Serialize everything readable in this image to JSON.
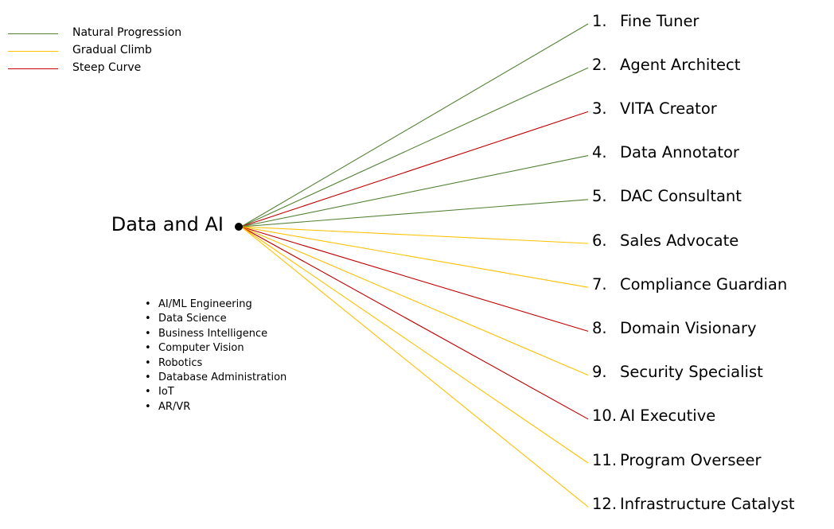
{
  "legend": [
    {
      "label": "Natural Progression",
      "color": "#548235"
    },
    {
      "label": "Gradual Climb",
      "color": "#FFC000"
    },
    {
      "label": "Steep Curve",
      "color": "#C00000"
    }
  ],
  "hub": {
    "label": "Data and AI"
  },
  "fields": [
    "AI/ML Engineering",
    "Data Science",
    "Business Intelligence",
    "Computer Vision",
    "Robotics",
    "Database Administration",
    "IoT",
    "AR/VR"
  ],
  "roles": [
    {
      "number": "1.",
      "label": "Fine Tuner",
      "curve": "Natural Progression"
    },
    {
      "number": "2.",
      "label": "Agent Architect",
      "curve": "Natural Progression"
    },
    {
      "number": "3.",
      "label": "VITA Creator",
      "curve": "Steep Curve"
    },
    {
      "number": "4.",
      "label": "Data Annotator",
      "curve": "Natural Progression"
    },
    {
      "number": "5.",
      "label": "DAC Consultant",
      "curve": "Natural Progression"
    },
    {
      "number": "6.",
      "label": "Sales Advocate",
      "curve": "Gradual Climb"
    },
    {
      "number": "7.",
      "label": "Compliance Guardian",
      "curve": "Gradual Climb"
    },
    {
      "number": "8.",
      "label": "Domain Visionary",
      "curve": "Steep Curve"
    },
    {
      "number": "9.",
      "label": "Security Specialist",
      "curve": "Gradual Climb"
    },
    {
      "number": "10.",
      "label": "AI Executive",
      "curve": "Steep Curve"
    },
    {
      "number": "11.",
      "label": "Program Overseer",
      "curve": "Gradual Climb"
    },
    {
      "number": "12.",
      "label": "Infrastructure Catalyst",
      "curve": "Gradual Climb"
    }
  ]
}
